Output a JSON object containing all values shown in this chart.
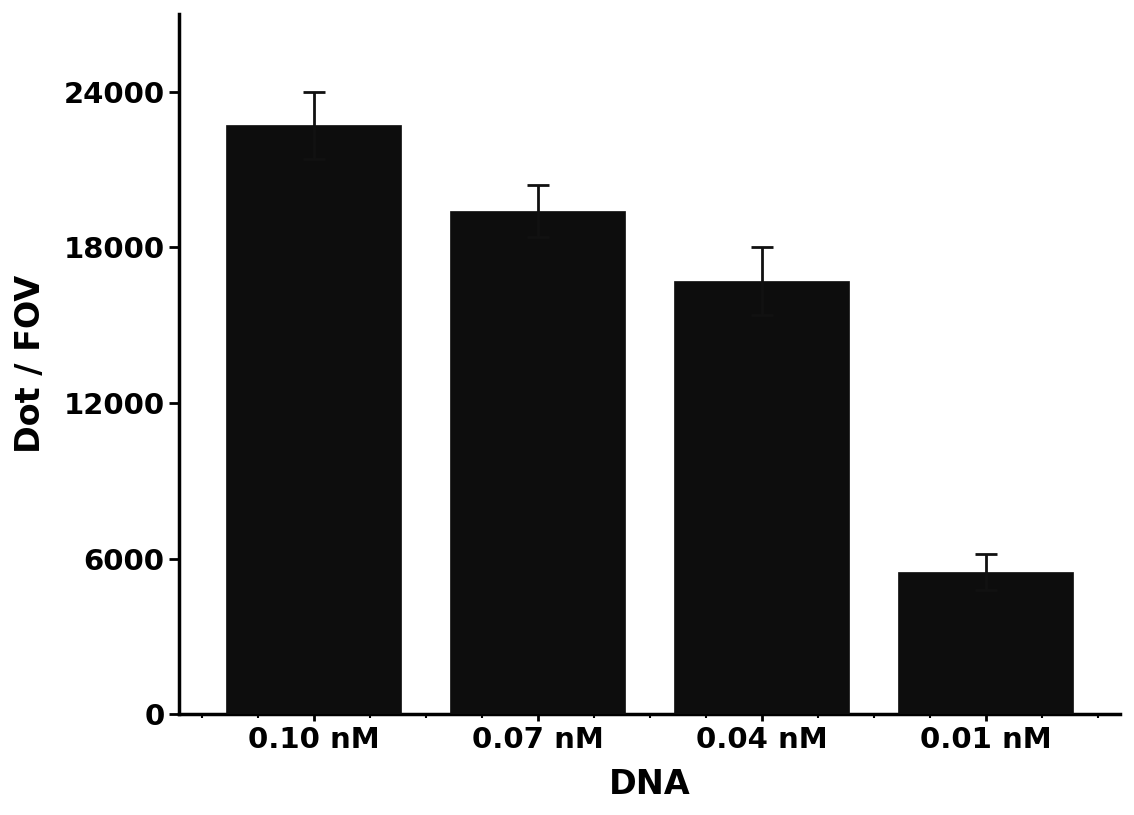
{
  "categories": [
    "0.10 nM",
    "0.07 nM",
    "0.04 nM",
    "0.01 nM"
  ],
  "values": [
    22700,
    19400,
    16700,
    5500
  ],
  "errors": [
    1300,
    1000,
    1300,
    700
  ],
  "bar_color": "#0d0d0d",
  "bar_width": 0.78,
  "ylabel": "Dot / FOV",
  "xlabel": "DNA",
  "ylim": [
    0,
    27000
  ],
  "yticks": [
    0,
    6000,
    12000,
    18000,
    24000
  ],
  "title": "",
  "background_color": "#ffffff",
  "label_fontsize": 24,
  "tick_fontsize": 21,
  "bar_edge_color": "#0d0d0d",
  "error_capsize": 8,
  "error_linewidth": 2.0,
  "error_color": "#111111"
}
